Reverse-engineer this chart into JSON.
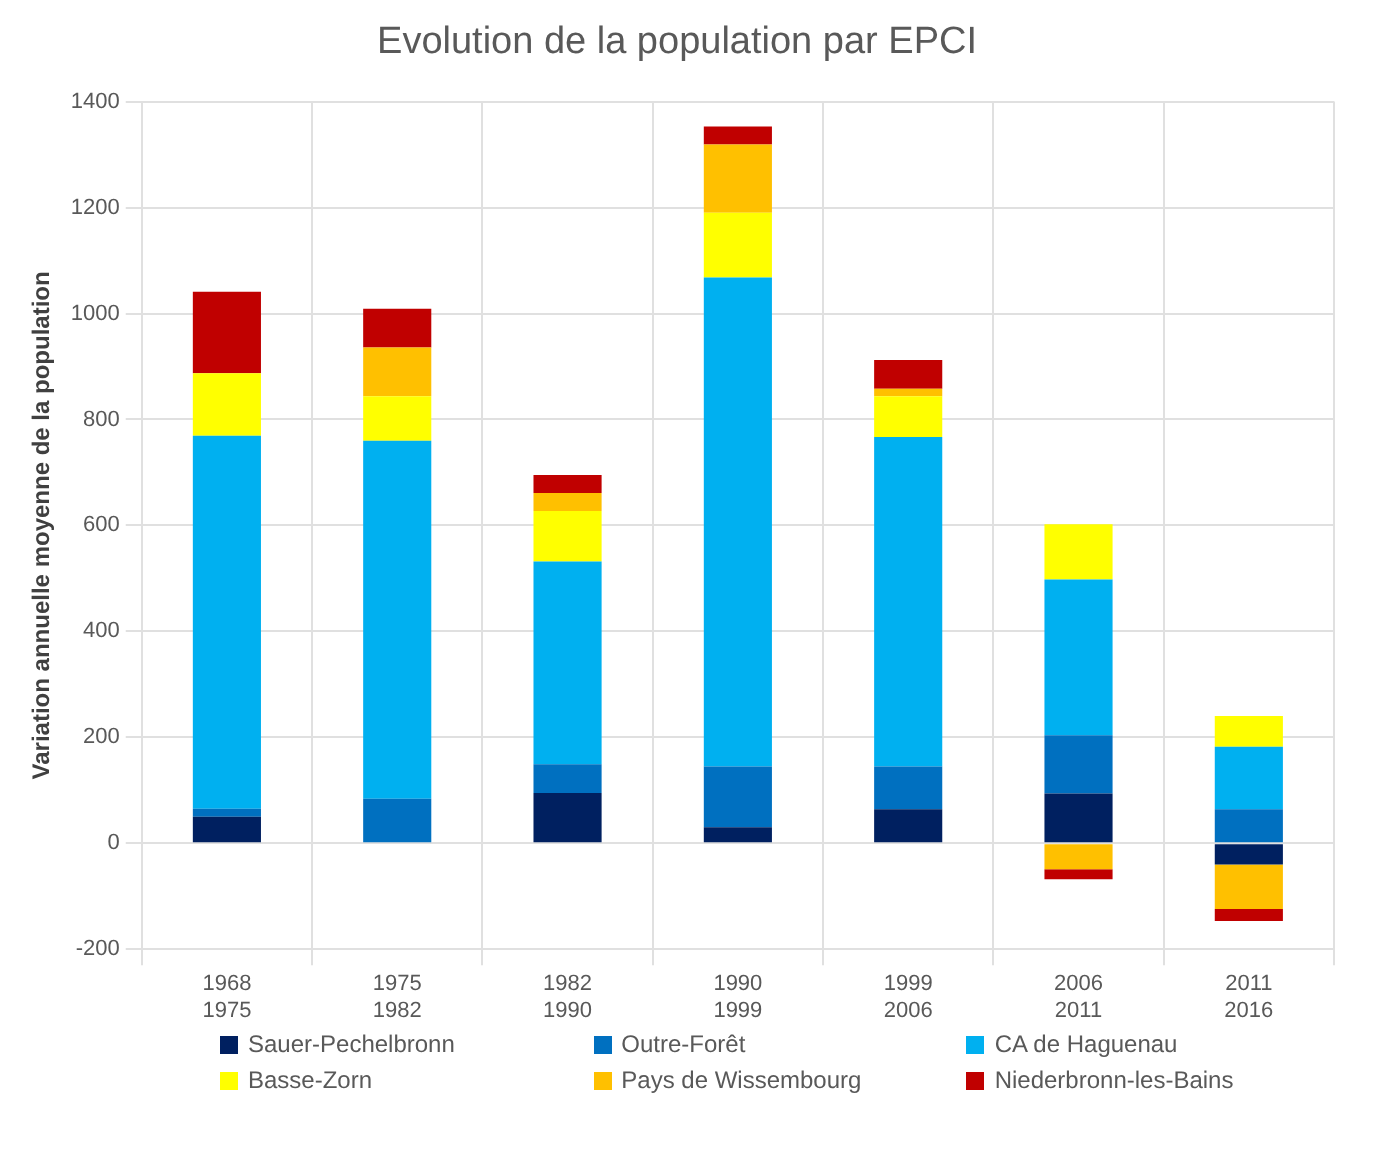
{
  "chart_data": {
    "type": "bar",
    "title": "Evolution de la population par EPCI",
    "ylabel": "Variation annuelle moyenne de la population",
    "categories": [
      "1968\n1975",
      "1975\n1982",
      "1982\n1990",
      "1990\n1999",
      "1999\n2006",
      "2006\n2011",
      "2011\n2016"
    ],
    "stacked": true,
    "series": [
      {
        "name": "Sauer-Pechelbronn",
        "color": "#002060",
        "values": [
          50,
          0,
          95,
          30,
          64,
          94,
          -40
        ]
      },
      {
        "name": "Outre-Forêt",
        "color": "#0070c0",
        "values": [
          15,
          84,
          54,
          115,
          81,
          110,
          64
        ]
      },
      {
        "name": "CA de Haguenau",
        "color": "#00b0f0",
        "values": [
          704,
          676,
          383,
          923,
          622,
          294,
          118
        ]
      },
      {
        "name": "Basse-Zorn",
        "color": "#ffff00",
        "values": [
          118,
          84,
          95,
          122,
          77,
          104,
          58
        ]
      },
      {
        "name": "Pays de Wissembourg",
        "color": "#ffc000",
        "values": [
          0,
          92,
          34,
          129,
          14,
          -49,
          -84
        ]
      },
      {
        "name": "Niederbronn-les-Bains",
        "color": "#c00000",
        "values": [
          154,
          73,
          34,
          34,
          54,
          -19,
          -23
        ]
      }
    ],
    "ylim": [
      -200,
      1400
    ],
    "yticks": [
      -200,
      0,
      200,
      400,
      600,
      800,
      1000,
      1200,
      1400
    ],
    "grid": true,
    "legend": "bottom"
  }
}
